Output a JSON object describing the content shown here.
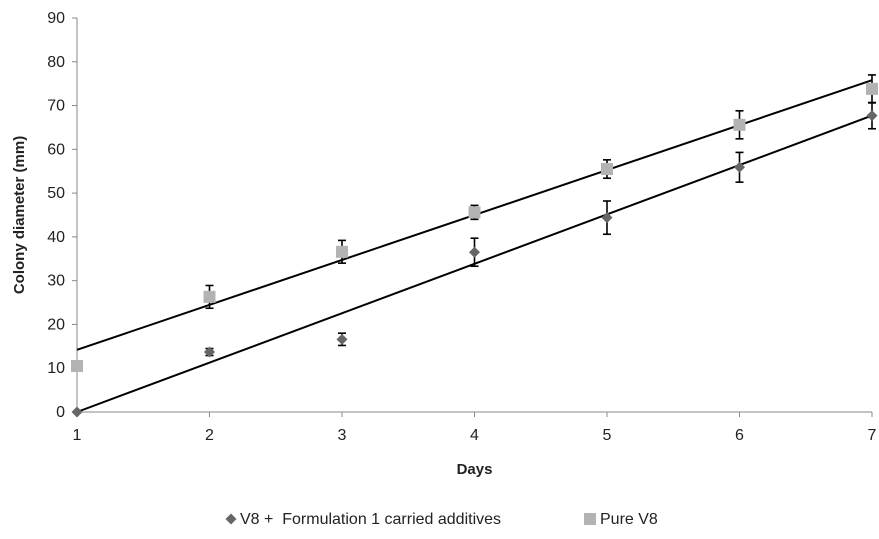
{
  "chart_data": {
    "type": "scatter",
    "title": "",
    "xlabel": "Days",
    "ylabel": "Colony diameter (mm)",
    "xlim": [
      1,
      7
    ],
    "ylim": [
      0,
      90
    ],
    "x_ticks": [
      1,
      2,
      3,
      4,
      5,
      6,
      7
    ],
    "y_ticks": [
      0,
      10,
      20,
      30,
      40,
      50,
      60,
      70,
      80,
      90
    ],
    "grid": false,
    "legend_position": "bottom",
    "series": [
      {
        "name": "V8 +  Formulation 1 carried additives",
        "marker": "diamond",
        "color": "#666666",
        "x": [
          1,
          2,
          3,
          4,
          5,
          6,
          7
        ],
        "y": [
          0,
          13.7,
          16.6,
          36.5,
          44.4,
          55.9,
          67.7
        ],
        "error": [
          0,
          0.8,
          1.4,
          3.2,
          3.8,
          3.4,
          3.0
        ],
        "trendline": {
          "x": [
            1,
            7
          ],
          "y": [
            0,
            67.7
          ]
        }
      },
      {
        "name": "Pure V8",
        "marker": "square",
        "color": "#b3b3b3",
        "x": [
          1,
          2,
          3,
          4,
          5,
          6,
          7
        ],
        "y": [
          10.5,
          26.3,
          36.6,
          45.6,
          55.5,
          65.6,
          73.8
        ],
        "error": [
          0,
          2.6,
          2.6,
          1.6,
          2.1,
          3.2,
          3.2
        ],
        "trendline": {
          "x": [
            1,
            7
          ],
          "y": [
            14.2,
            75.8
          ]
        }
      }
    ]
  }
}
